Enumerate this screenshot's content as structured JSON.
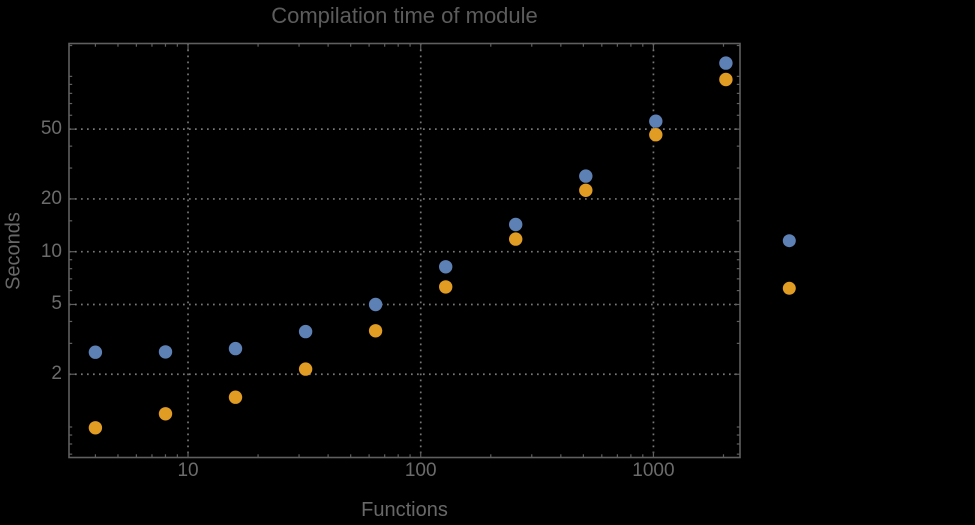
{
  "colors": {
    "background": "#000000",
    "frame": "#5f5f5f",
    "gridlines": "#767676",
    "ticks": "#5f5f5f",
    "tick_text": "#6b6b6b",
    "title_text": "#5c5c5c",
    "axis_label_text": "#686868",
    "series_blue": "#5e81b5",
    "series_orange": "#e19c24"
  },
  "chart_data": {
    "type": "scatter",
    "title": "Compilation time of module",
    "xlabel": "Functions",
    "ylabel": "Seconds",
    "xscale": "log",
    "yscale": "log",
    "xlim": [
      3.08,
      2355
    ],
    "ylim": [
      0.67,
      154
    ],
    "grid": "dotted, at labeled ticks only",
    "x_ticks_labeled": [
      10,
      100,
      1000
    ],
    "y_ticks_labeled": [
      2,
      5,
      10,
      20,
      50
    ],
    "x_ticks_minor": [
      4,
      5,
      6,
      7,
      8,
      9,
      20,
      30,
      40,
      50,
      60,
      70,
      80,
      90,
      200,
      300,
      400,
      500,
      600,
      700,
      800,
      900,
      2000
    ],
    "y_ticks_minor": [
      0.7,
      0.8,
      0.9,
      1,
      3,
      4,
      6,
      7,
      8,
      9,
      15,
      30,
      40,
      60,
      70,
      80,
      90,
      100,
      150
    ],
    "series": [
      {
        "name": "blue",
        "color": "#5e81b5",
        "x": [
          4,
          8,
          16,
          32,
          64,
          128,
          256,
          512,
          1024,
          2048
        ],
        "y": [
          2.67,
          2.68,
          2.8,
          3.5,
          5.0,
          8.2,
          14.3,
          27,
          55.5,
          119
        ]
      },
      {
        "name": "orange",
        "color": "#e19c24",
        "x": [
          4,
          8,
          16,
          32,
          64,
          128,
          256,
          512,
          1024,
          2048
        ],
        "y": [
          0.99,
          1.19,
          1.48,
          2.14,
          3.54,
          6.3,
          11.8,
          22.4,
          46.5,
          96
        ]
      }
    ],
    "legend": {
      "position": "right-outside",
      "markers": [
        {
          "series": "blue",
          "color": "#5e81b5"
        },
        {
          "series": "orange",
          "color": "#e19c24"
        }
      ],
      "labels_visible": false
    }
  }
}
